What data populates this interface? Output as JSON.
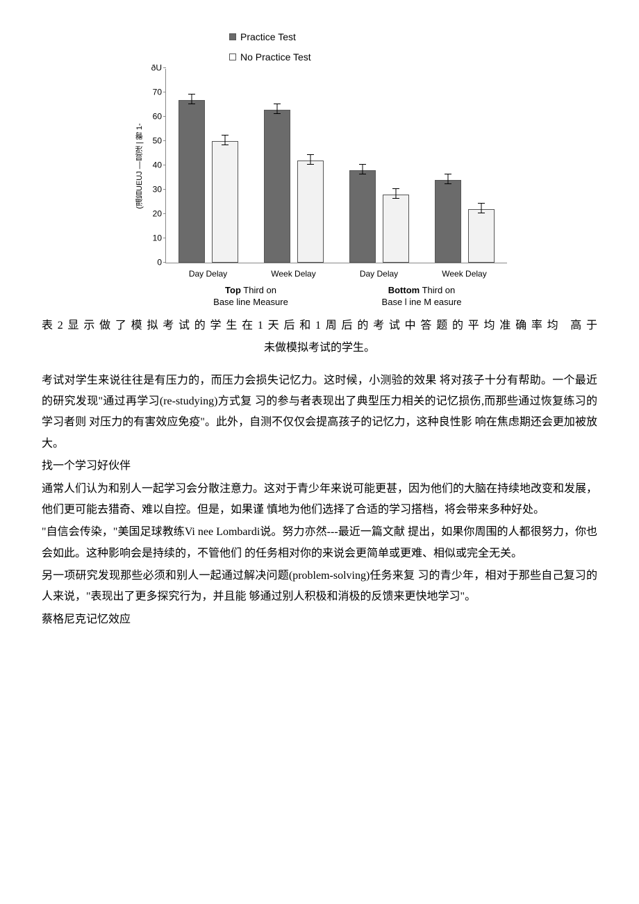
{
  "chart": {
    "type": "bar",
    "legend": [
      {
        "label": "Practice Test",
        "color": "#6b6b6b",
        "marker": "filled"
      },
      {
        "label": "No Practice Test",
        "color": "#f2f2f2",
        "marker": "open"
      }
    ],
    "ylim": [
      0,
      80
    ],
    "yticks": [
      0,
      10,
      20,
      30,
      40,
      50,
      60,
      70,
      80
    ],
    "ytick_top_label": "ðU",
    "ylabel_rotated": "(溫旨UEUJ —显淫 | 臀 1-",
    "groups": [
      {
        "xlabel": "Day Delay",
        "bars": [
          {
            "value": 67,
            "err": 2,
            "fill": "#6b6b6b"
          },
          {
            "value": 50,
            "err": 2,
            "fill": "#f2f2f2"
          }
        ]
      },
      {
        "xlabel": "Week Delay",
        "bars": [
          {
            "value": 63,
            "err": 2,
            "fill": "#6b6b6b"
          },
          {
            "value": 42,
            "err": 2,
            "fill": "#f2f2f2"
          }
        ]
      },
      {
        "xlabel": "Day Delay",
        "bars": [
          {
            "value": 38,
            "err": 2,
            "fill": "#6b6b6b"
          },
          {
            "value": 28,
            "err": 2,
            "fill": "#f2f2f2"
          }
        ]
      },
      {
        "xlabel": "Week Delay",
        "bars": [
          {
            "value": 34,
            "err": 2,
            "fill": "#6b6b6b"
          },
          {
            "value": 22,
            "err": 2,
            "fill": "#f2f2f2"
          }
        ]
      }
    ],
    "subaxis": [
      {
        "bold": "Top",
        "rest": " Third on",
        "line2": "Base line Measure"
      },
      {
        "bold": "Bottom",
        "rest": " Third on",
        "line2": "Base l ine M easure"
      }
    ],
    "bar_border": "#555",
    "axis_color": "#888"
  },
  "caption_line1": "表2显示做了模拟考试的学生在1天后和1周后的考试中答题的平均准确率均   高于",
  "caption_line2": "未做模拟考试的学生。",
  "paragraphs": [
    "考试对学生来说往往是有压力的，而压力会损失记忆力。这时候，小测验的效果 将对孩子十分有帮助。一个最近的研究发现\"通过再学习(re-studying)方式复 习的参与者表现出了典型压力相关的记忆损伤,而那些通过恢复练习的学习者则 对压力的有害效应免疫\"。此外，自测不仅仅会提高孩子的记忆力，这种良性影 响在焦虑期还会更加被放大。",
    "找一个学习好伙伴",
    "通常人们认为和别人一起学习会分散注意力。这对于青少年来说可能更甚，因为他们的大脑在持续地改变和发展，他们更可能去猎奇、难以自控。但是，如果谨 慎地为他们选择了合适的学习搭档，将会带来多种好处。",
    "\"自信会传染，\"美国足球教练Vi nee Lombardi说。努力亦然---最近一篇文献 提出，如果你周围的人都很努力，你也会如此。这种影响会是持续的，不管他们 的任务相对你的来说会更简单或更难、相似或完全无关。",
    "另一项研究发现那些必须和别人一起通过解决问题(problem-solving)任务来复 习的青少年，相对于那些自己复习的人来说，\"表现出了更多探究行为，并且能 够通过别人积极和消极的反馈来更快地学习\"。",
    "蔡格尼克记忆效应"
  ]
}
